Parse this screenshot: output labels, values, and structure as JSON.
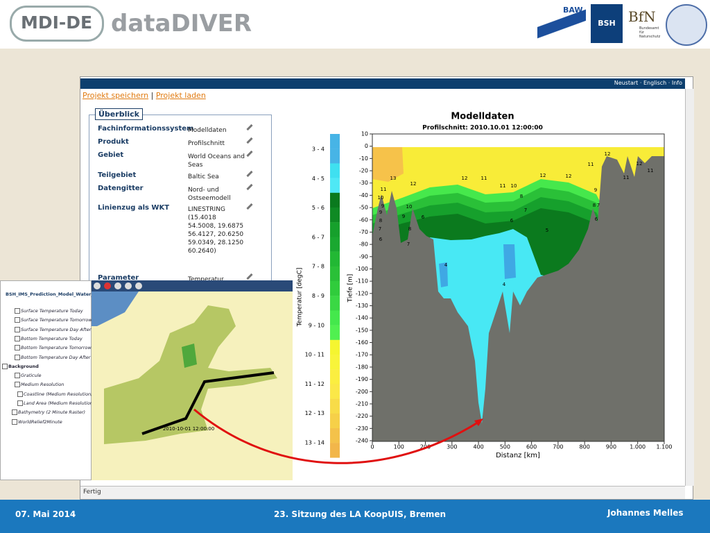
{
  "header": {
    "logo": "MDI-DE",
    "title": "dataDIVER",
    "logos": [
      "BAW",
      "BSH",
      "BfN",
      "Bundesamt für Naturschutz"
    ]
  },
  "browser": {
    "top_links": "Neustart · Englisch · Info",
    "project_links": [
      "Projekt speichern",
      "Projekt laden"
    ],
    "status": "Fertig"
  },
  "overview": {
    "title": "Überblick",
    "rows": [
      {
        "key": "Fachinformationssystem",
        "value": "Modelldaten"
      },
      {
        "key": "Produkt",
        "value": "Profilschnitt"
      },
      {
        "key": "Gebiet",
        "value": "World Oceans and Seas"
      },
      {
        "key": "Teilgebiet",
        "value": "Baltic Sea"
      },
      {
        "key": "Datengitter",
        "value": "Nord- und Ostseemodell"
      },
      {
        "key": "Linienzug als WKT",
        "value": "LINESTRING (15.4018 54.5008, 19.6875 56.4127, 20.6250 59.0349, 28.1250 60.2640)"
      },
      {
        "key": "Parameter",
        "value": "Temperatur"
      }
    ]
  },
  "plot": {
    "title": "Modelldaten",
    "subtitle": "Profilschnitt: 2010.10.01 12:00:00",
    "y_label": "Tiefe [m]",
    "x_label": "Distanz [km]",
    "yticks": [
      "10",
      "0",
      "-10",
      "-20",
      "-30",
      "-40",
      "-50",
      "-60",
      "-70",
      "-80",
      "-90",
      "-100",
      "-110",
      "-120",
      "-130",
      "-140",
      "-150",
      "-160",
      "-170",
      "-180",
      "-190",
      "-200",
      "-210",
      "-220",
      "-230",
      "-240"
    ],
    "xticks": [
      "0",
      "100",
      "200",
      "300",
      "400",
      "500",
      "600",
      "700",
      "800",
      "900",
      "1.000",
      "1.100"
    ],
    "colorbar": {
      "label": "Temperatur [degC]",
      "classes": [
        "3 - 4",
        "4 - 5",
        "5 - 6",
        "6 - 7",
        "7 - 8",
        "8 - 9",
        "9 - 10",
        "10 - 11",
        "11 - 12",
        "12 - 13",
        "13 - 14"
      ]
    },
    "contour_labels": [
      "13",
      "12",
      "12",
      "11",
      "10",
      "12",
      "11",
      "12",
      "11",
      "12",
      "11",
      "12",
      "11",
      "11",
      "10",
      "9",
      "9",
      "8",
      "7",
      "6",
      "10",
      "9",
      "8",
      "7",
      "8",
      "7",
      "6",
      "5",
      "9",
      "8",
      "6",
      "7",
      "6",
      "4",
      "4"
    ]
  },
  "layers": {
    "root": "BSH_IMS_Prediction_Model_Water_Temper",
    "items": [
      "Surface Temperature Today",
      "Surface Temperature Tomorrow",
      "Surface Temperature Day After Tom",
      "Bottom Temperature Today",
      "Bottom Temperature Tomorrow",
      "Bottom Temperature Day After Tom",
      "Background",
      "Graticule",
      "Medium Resolution",
      "Coastline (Medium Resolution)",
      "Land Area (Medium Resolution)",
      "Bathymetry (2 Minute Raster)",
      "WorldRelief2Minute"
    ]
  },
  "map": {
    "timestamp": "2010-10-01 12:00:00"
  },
  "footer": {
    "date": "07. Mai 2014",
    "event": "23. Sitzung des LA KoopUIS, Bremen",
    "author": "Johannes Melles"
  }
}
